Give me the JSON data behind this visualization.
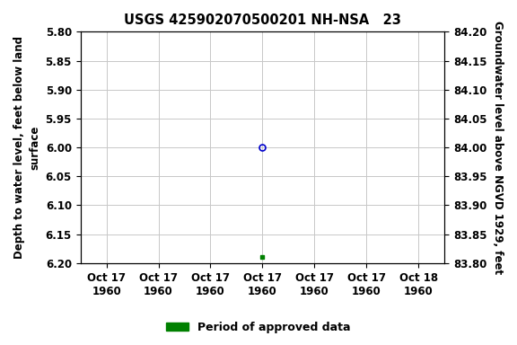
{
  "title": "USGS 425902070500201 NH-NSA   23",
  "y_open_circle": 6.0,
  "y_green_square": 6.19,
  "x_data": 3.0,
  "ylim_left": [
    5.8,
    6.2
  ],
  "ylim_right": [
    83.8,
    84.2
  ],
  "left_yticks": [
    5.8,
    5.85,
    5.9,
    5.95,
    6.0,
    6.05,
    6.1,
    6.15,
    6.2
  ],
  "right_yticks": [
    84.2,
    84.15,
    84.1,
    84.05,
    84.0,
    83.95,
    83.9,
    83.85,
    83.8
  ],
  "xtick_positions": [
    0,
    1,
    2,
    3,
    4,
    5,
    6
  ],
  "xtick_labels": [
    "Oct 17\n1960",
    "Oct 17\n1960",
    "Oct 17\n1960",
    "Oct 17\n1960",
    "Oct 17\n1960",
    "Oct 17\n1960",
    "Oct 18\n1960"
  ],
  "ylabel_left": "Depth to water level, feet below land\nsurface",
  "ylabel_right": "Groundwater level above NGVD 1929, feet",
  "legend_label": "Period of approved data",
  "legend_color": "#008000",
  "open_circle_color": "#0000cc",
  "green_square_color": "#008000",
  "bg_color": "#ffffff",
  "grid_color": "#c8c8c8",
  "title_fontsize": 10.5,
  "label_fontsize": 8.5,
  "tick_fontsize": 8.5,
  "legend_fontsize": 9,
  "xlim": [
    -0.5,
    6.5
  ]
}
